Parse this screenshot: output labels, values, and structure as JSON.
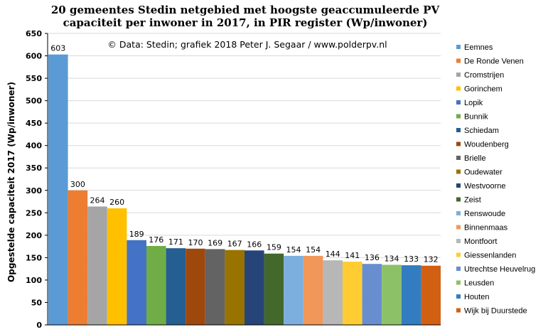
{
  "chart_data": {
    "type": "bar",
    "title_line1": "20 gemeentes Stedin netgebied met hoogste geaccumuleerde PV",
    "title_line2": "capaciteit per inwoner in 2017, in PIR register (Wp/inwoner)",
    "annotation": "© Data: Stedin; grafiek 2018 Peter J. Segaar / www.polderpv.nl",
    "ylabel": "Opgestelde capaciteit 2017 (Wp/inwoner)",
    "ylim": [
      0,
      650
    ],
    "yticks": [
      0,
      50,
      100,
      150,
      200,
      250,
      300,
      350,
      400,
      450,
      500,
      550,
      600,
      650
    ],
    "grid": true,
    "legend_position": "right",
    "categories": [
      "Eemnes",
      "De Ronde Venen",
      "Cromstrijen",
      "Gorinchem",
      "Lopik",
      "Bunnik",
      "Schiedam",
      "Woudenberg",
      "Brielle",
      "Oudewater",
      "Westvoorne",
      "Zeist",
      "Renswoude",
      "Binnenmaas",
      "Montfoort",
      "Giessenlanden",
      "Utrechtse Heuvelrug",
      "Leusden",
      "Houten",
      "Wijk bij Duurstede"
    ],
    "values": [
      603,
      300,
      264,
      260,
      189,
      176,
      171,
      170,
      169,
      167,
      166,
      159,
      154,
      154,
      144,
      141,
      136,
      134,
      133,
      132
    ],
    "colors": [
      "#5b9bd5",
      "#ed7d31",
      "#a5a5a5",
      "#ffc000",
      "#4472c4",
      "#70ad47",
      "#255e91",
      "#9e480e",
      "#636363",
      "#997300",
      "#264478",
      "#43682b",
      "#7cafdd",
      "#f1975a",
      "#b7b7b7",
      "#ffcd33",
      "#698ed0",
      "#8cc168",
      "#327dc2",
      "#d26012"
    ]
  }
}
